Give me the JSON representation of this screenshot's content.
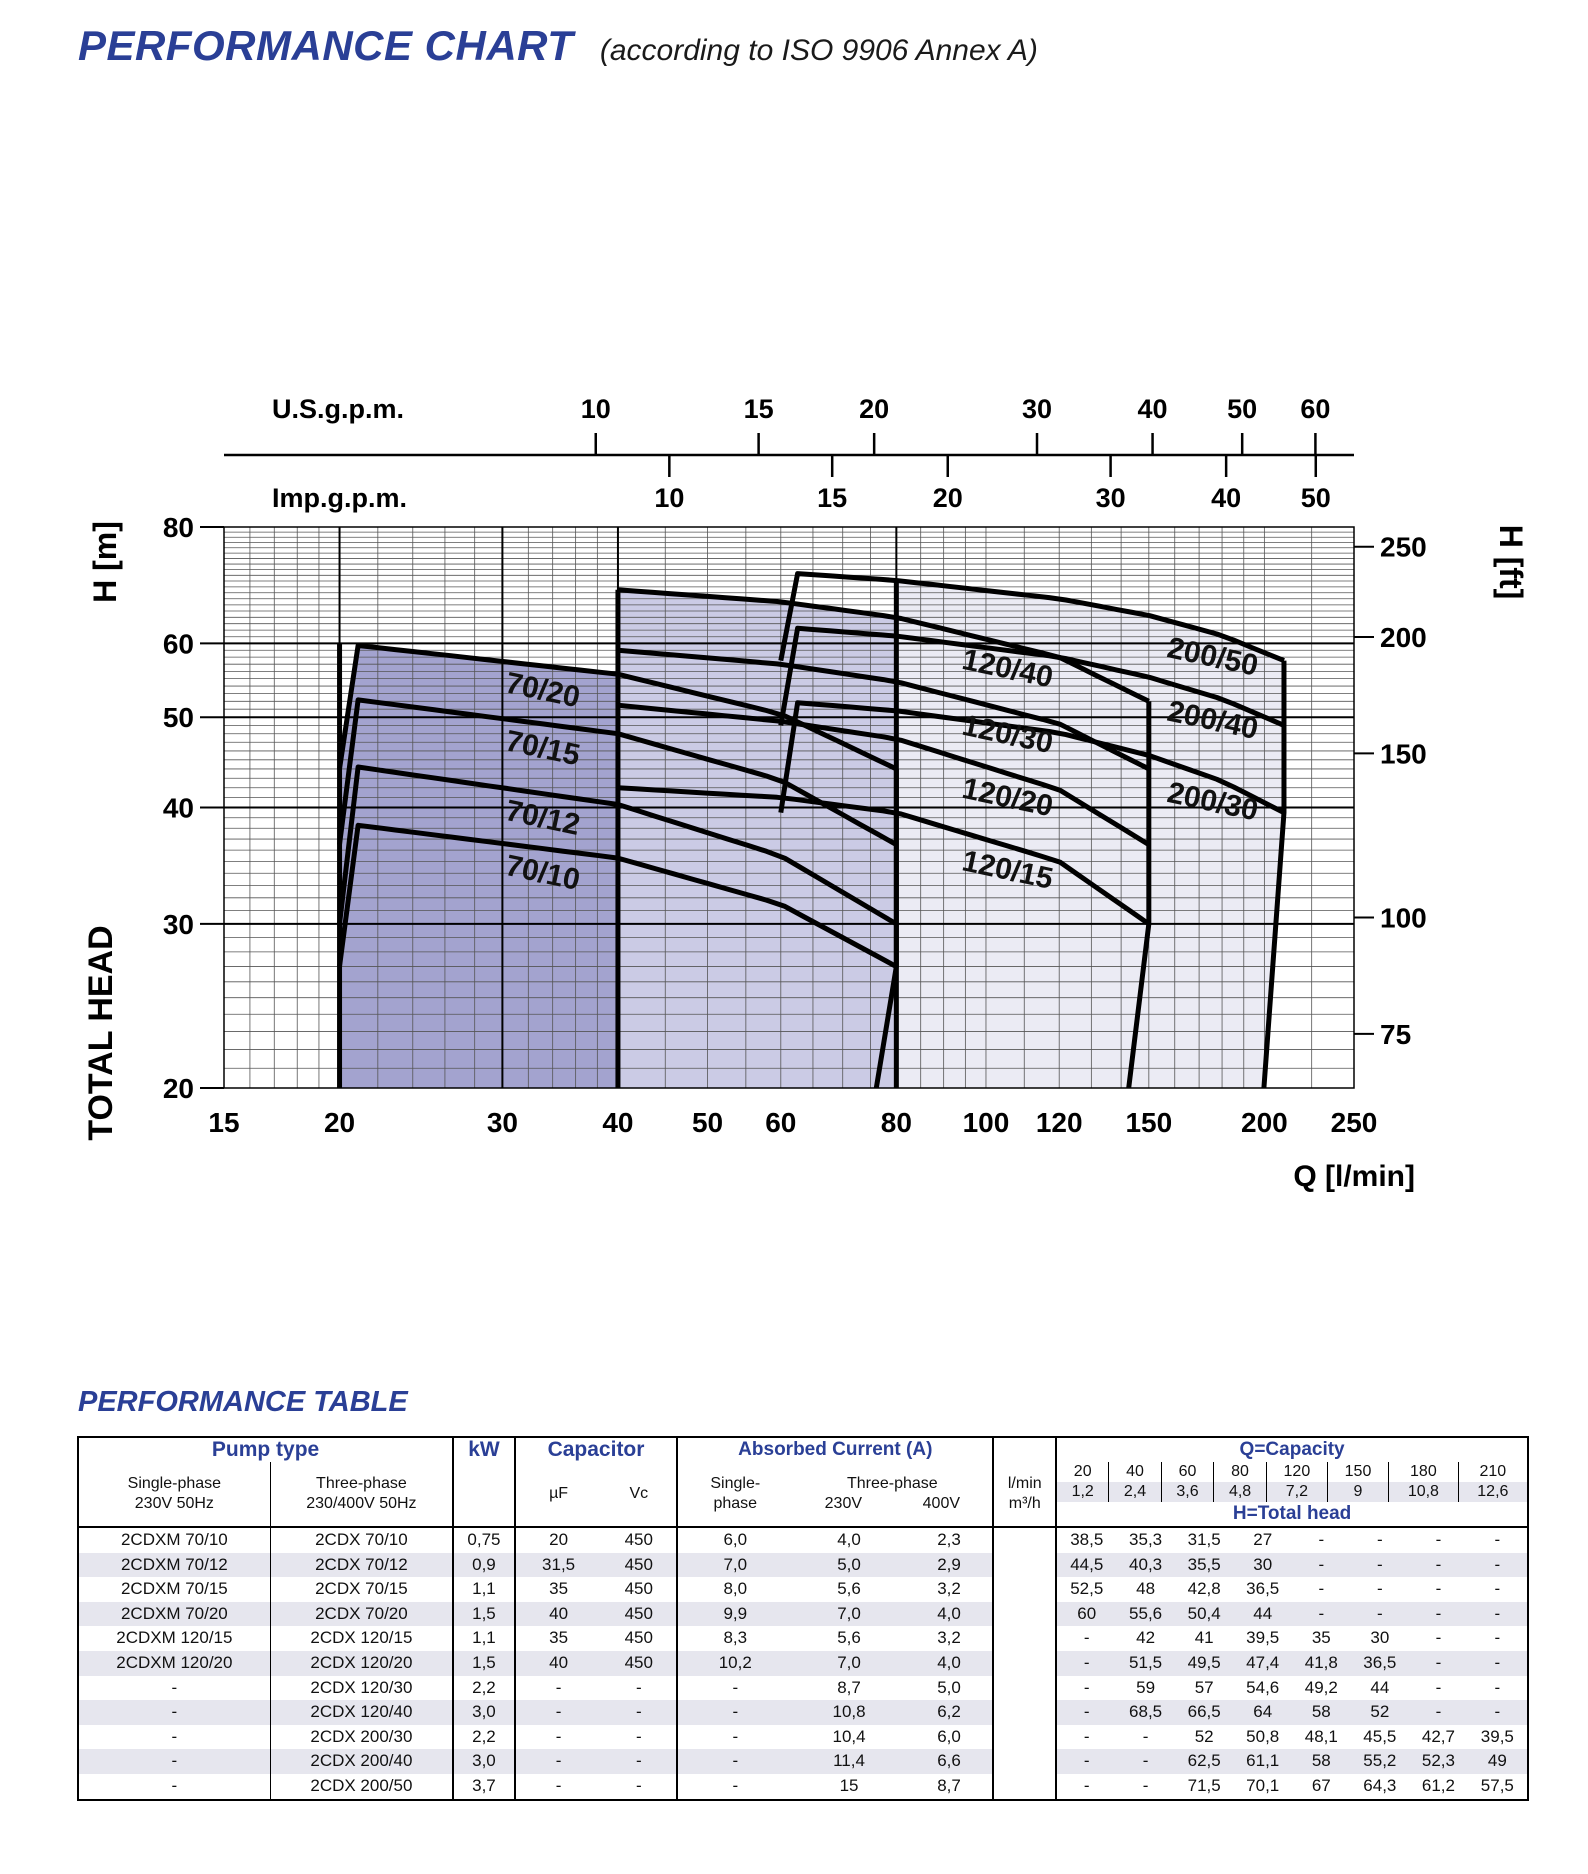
{
  "header": {
    "title": "PERFORMANCE CHART",
    "subtitle": "(according to ISO 9906 Annex A)"
  },
  "chart_data": {
    "type": "line",
    "title": "PERFORMANCE CHART",
    "xlabel": "Q [l/min]",
    "ylabel": "TOTAL HEAD",
    "ylabel_unit": "H [m]",
    "y2label": "H [ft]",
    "x_scale": "log",
    "y_scale": "log",
    "xlim": [
      15,
      250
    ],
    "ylim": [
      20,
      80
    ],
    "x_ticks": [
      "15",
      "20",
      "30",
      "40",
      "50",
      "60",
      "80",
      "100",
      "120",
      "150",
      "200",
      "250"
    ],
    "y_ticks": [
      "20",
      "30",
      "40",
      "50",
      "60",
      "80"
    ],
    "y2_ticks": [
      "75",
      "100",
      "150",
      "200",
      "250"
    ],
    "top_axes": [
      {
        "label": "U.S.g.p.m.",
        "ticks": [
          "10",
          "15",
          "20",
          "30",
          "40",
          "50",
          "60"
        ]
      },
      {
        "label": "Imp.g.p.m.",
        "ticks": [
          "10",
          "15",
          "20",
          "30",
          "40",
          "50"
        ]
      }
    ],
    "series": [
      {
        "name": "70/10",
        "x": [
          20,
          40,
          60,
          80
        ],
        "y": [
          38.5,
          35.3,
          31.5,
          27
        ]
      },
      {
        "name": "70/12",
        "x": [
          20,
          40,
          60,
          80
        ],
        "y": [
          44.5,
          40.3,
          35.5,
          30
        ]
      },
      {
        "name": "70/15",
        "x": [
          20,
          40,
          60,
          80
        ],
        "y": [
          52.5,
          48,
          42.8,
          36.5
        ]
      },
      {
        "name": "70/20",
        "x": [
          20,
          40,
          60,
          80
        ],
        "y": [
          60,
          55.6,
          50.4,
          44
        ]
      },
      {
        "name": "120/15",
        "x": [
          40,
          60,
          80,
          120,
          150
        ],
        "y": [
          42,
          41,
          39.5,
          35,
          30
        ]
      },
      {
        "name": "120/20",
        "x": [
          40,
          60,
          80,
          120,
          150
        ],
        "y": [
          51.5,
          49.5,
          47.4,
          41.8,
          36.5
        ]
      },
      {
        "name": "120/30",
        "x": [
          40,
          60,
          80,
          120,
          150
        ],
        "y": [
          59,
          57,
          54.6,
          49.2,
          44
        ]
      },
      {
        "name": "120/40",
        "x": [
          40,
          60,
          80,
          120,
          150
        ],
        "y": [
          68.5,
          66.5,
          64,
          58,
          52
        ]
      },
      {
        "name": "200/30",
        "x": [
          60,
          80,
          120,
          150,
          180,
          210
        ],
        "y": [
          52,
          50.8,
          48.1,
          45.5,
          42.7,
          39.5
        ]
      },
      {
        "name": "200/40",
        "x": [
          60,
          80,
          120,
          150,
          180,
          210
        ],
        "y": [
          62.5,
          61.1,
          58,
          55.2,
          52.3,
          49
        ]
      },
      {
        "name": "200/50",
        "x": [
          60,
          80,
          120,
          150,
          180,
          210
        ],
        "y": [
          71.5,
          70.1,
          67,
          64.3,
          61.2,
          57.5
        ]
      }
    ],
    "family_colors": [
      "#a3a3cf",
      "#cbcbe5",
      "#ebebf4"
    ]
  },
  "table": {
    "title": "PERFORMANCE TABLE",
    "head": {
      "pump_type": "Pump type",
      "single_phase": "Single-phase",
      "single_phase_spec": "230V 50Hz",
      "three_phase": "Three-phase",
      "three_phase_spec": "230/400V 50Hz",
      "kw": "kW",
      "capacitor": "Capacitor",
      "uf": "µF",
      "vc": "Vc",
      "absorbed": "Absorbed Current  (A)",
      "single": "Single-",
      "phase": "phase",
      "three": "Three-phase",
      "v230": "230V",
      "v400": "400V",
      "lmin": "l/min",
      "m3h": "m³/h",
      "q_capacity": "Q=Capacity",
      "h_total": "H=Total head"
    },
    "q_lmin": [
      "20",
      "40",
      "60",
      "80",
      "120",
      "150",
      "180",
      "210"
    ],
    "q_m3h": [
      "1,2",
      "2,4",
      "3,6",
      "4,8",
      "7,2",
      "9",
      "10,8",
      "12,6"
    ],
    "rows": [
      [
        "2CDXM 70/10",
        "2CDX  70/10",
        "0,75",
        "20",
        "450",
        "6,0",
        "4,0",
        "2,3",
        "38,5",
        "35,3",
        "31,5",
        "27",
        "-",
        "-",
        "-",
        "-"
      ],
      [
        "2CDXM 70/12",
        "2CDX  70/12",
        "0,9",
        "31,5",
        "450",
        "7,0",
        "5,0",
        "2,9",
        "44,5",
        "40,3",
        "35,5",
        "30",
        "-",
        "-",
        "-",
        "-"
      ],
      [
        "2CDXM 70/15",
        "2CDX  70/15",
        "1,1",
        "35",
        "450",
        "8,0",
        "5,6",
        "3,2",
        "52,5",
        "48",
        "42,8",
        "36,5",
        "-",
        "-",
        "-",
        "-"
      ],
      [
        "2CDXM 70/20",
        "2CDX  70/20",
        "1,5",
        "40",
        "450",
        "9,9",
        "7,0",
        "4,0",
        "60",
        "55,6",
        "50,4",
        "44",
        "-",
        "-",
        "-",
        "-"
      ],
      [
        "2CDXM 120/15",
        "2CDX 120/15",
        "1,1",
        "35",
        "450",
        "8,3",
        "5,6",
        "3,2",
        "-",
        "42",
        "41",
        "39,5",
        "35",
        "30",
        "-",
        "-"
      ],
      [
        "2CDXM 120/20",
        "2CDX 120/20",
        "1,5",
        "40",
        "450",
        "10,2",
        "7,0",
        "4,0",
        "-",
        "51,5",
        "49,5",
        "47,4",
        "41,8",
        "36,5",
        "-",
        "-"
      ],
      [
        "-",
        "2CDX 120/30",
        "2,2",
        "-",
        "-",
        "-",
        "8,7",
        "5,0",
        "-",
        "59",
        "57",
        "54,6",
        "49,2",
        "44",
        "-",
        "-"
      ],
      [
        "-",
        "2CDX 120/40",
        "3,0",
        "-",
        "-",
        "-",
        "10,8",
        "6,2",
        "-",
        "68,5",
        "66,5",
        "64",
        "58",
        "52",
        "-",
        "-"
      ],
      [
        "-",
        "2CDX 200/30",
        "2,2",
        "-",
        "-",
        "-",
        "10,4",
        "6,0",
        "-",
        "-",
        "52",
        "50,8",
        "48,1",
        "45,5",
        "42,7",
        "39,5"
      ],
      [
        "-",
        "2CDX 200/40",
        "3,0",
        "-",
        "-",
        "-",
        "11,4",
        "6,6",
        "-",
        "-",
        "62,5",
        "61,1",
        "58",
        "55,2",
        "52,3",
        "49"
      ],
      [
        "-",
        "2CDX 200/50",
        "3,7",
        "-",
        "-",
        "-",
        "15",
        "8,7",
        "-",
        "-",
        "71,5",
        "70,1",
        "67",
        "64,3",
        "61,2",
        "57,5"
      ]
    ]
  }
}
